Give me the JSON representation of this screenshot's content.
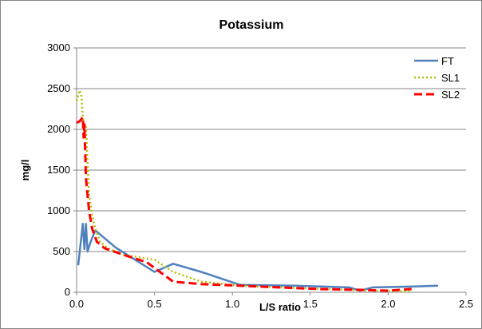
{
  "chart_data": {
    "type": "line",
    "title": "Potassium",
    "xlabel": "L/S ratio",
    "ylabel": "mg/l",
    "xlim": [
      0,
      2.5
    ],
    "ylim": [
      0,
      3000
    ],
    "xticks": [
      "0.0",
      "0.5",
      "1.0",
      "1.5",
      "2.0",
      "2.5"
    ],
    "yticks": [
      "0",
      "500",
      "1000",
      "1500",
      "2000",
      "2500",
      "3000"
    ],
    "grid": "horizontal",
    "legend_position": "top-right",
    "series": [
      {
        "name": "FT",
        "color": "#4F81BD",
        "style": "solid",
        "x": [
          0.01,
          0.02,
          0.04,
          0.05,
          0.06,
          0.07,
          0.09,
          0.12,
          0.25,
          0.5,
          0.62,
          0.8,
          1.05,
          1.4,
          1.75,
          1.82,
          1.9,
          2.15,
          2.32
        ],
        "y": [
          330,
          500,
          840,
          530,
          840,
          500,
          620,
          760,
          550,
          250,
          350,
          250,
          90,
          80,
          60,
          20,
          60,
          70,
          80
        ]
      },
      {
        "name": "SL1",
        "color": "#B6BD00",
        "style": "dotted",
        "x": [
          0.0,
          0.02,
          0.03,
          0.04,
          0.05,
          0.06,
          0.08,
          0.1,
          0.12,
          0.15,
          0.2,
          0.3,
          0.5,
          0.62,
          0.8,
          1.05,
          1.3,
          1.6,
          1.8,
          2.0,
          2.15
        ],
        "y": [
          2350,
          2480,
          2420,
          2150,
          1980,
          2030,
          1200,
          950,
          780,
          620,
          540,
          460,
          400,
          250,
          130,
          80,
          60,
          40,
          25,
          15,
          10
        ]
      },
      {
        "name": "SL2",
        "color": "#FF0000",
        "style": "dashed",
        "x": [
          0.0,
          0.02,
          0.04,
          0.045,
          0.05,
          0.06,
          0.08,
          0.1,
          0.13,
          0.18,
          0.3,
          0.45,
          0.62,
          0.8,
          1.05,
          1.3,
          1.55,
          1.8,
          2.0,
          2.15
        ],
        "y": [
          2080,
          2100,
          2150,
          1900,
          2060,
          1400,
          1000,
          780,
          620,
          540,
          460,
          370,
          130,
          100,
          80,
          60,
          40,
          30,
          20,
          40
        ]
      }
    ]
  }
}
